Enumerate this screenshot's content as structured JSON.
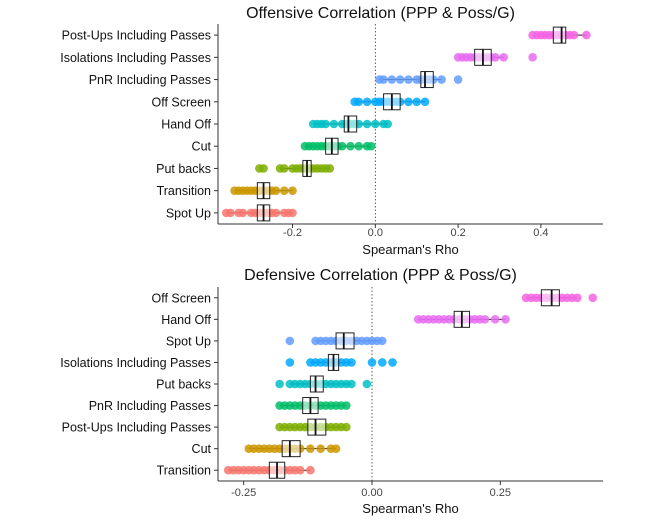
{
  "chart_data": [
    {
      "type": "boxplot_dot",
      "title": "Offensive Correlation (PPP & Poss/G)",
      "xlabel": "Spearman's Rho",
      "ylabel": "",
      "xlim": [
        -0.38,
        0.55
      ],
      "xticks": [
        -0.2,
        0.0,
        0.2,
        0.4
      ],
      "xtick_labels": [
        "-0.2",
        "0.0",
        "0.2",
        "0.4"
      ],
      "reference_line": 0.0,
      "grid": false,
      "categories": [
        "Post-Ups Including Passes",
        "Isolations Including Passes",
        "PnR Including Passes",
        "Off Screen",
        "Hand Off",
        "Cut",
        "Put backs",
        "Transition",
        "Spot Up"
      ],
      "series": [
        {
          "category": "Post-Ups Including Passes",
          "color": "#F564E3",
          "q1": 0.43,
          "median": 0.45,
          "q3": 0.46,
          "wlo": 0.38,
          "whi": 0.51,
          "points": [
            0.38,
            0.39,
            0.4,
            0.41,
            0.42,
            0.43,
            0.44,
            0.45,
            0.46,
            0.47,
            0.48,
            0.51
          ]
        },
        {
          "category": "Isolations Including Passes",
          "color": "#E76BF3",
          "q1": 0.24,
          "median": 0.26,
          "q3": 0.28,
          "wlo": 0.2,
          "whi": 0.31,
          "points": [
            0.2,
            0.21,
            0.22,
            0.23,
            0.24,
            0.25,
            0.26,
            0.27,
            0.28,
            0.29,
            0.31,
            0.38
          ]
        },
        {
          "category": "PnR Including Passes",
          "color": "#619CFF",
          "q1": 0.11,
          "median": 0.12,
          "q3": 0.14,
          "wlo": 0.01,
          "whi": 0.16,
          "points": [
            0.01,
            0.02,
            0.04,
            0.06,
            0.08,
            0.1,
            0.11,
            0.12,
            0.13,
            0.14,
            0.16,
            0.2
          ]
        },
        {
          "category": "Off Screen",
          "color": "#00A9FF",
          "q1": 0.02,
          "median": 0.04,
          "q3": 0.06,
          "wlo": -0.05,
          "whi": 0.12,
          "points": [
            -0.05,
            -0.04,
            -0.02,
            0.0,
            0.01,
            0.02,
            0.03,
            0.04,
            0.05,
            0.06,
            0.08,
            0.1,
            0.12
          ]
        },
        {
          "category": "Hand Off",
          "color": "#00BFC4",
          "q1": -0.075,
          "median": -0.065,
          "q3": -0.045,
          "wlo": -0.15,
          "whi": 0.03,
          "points": [
            -0.15,
            -0.14,
            -0.13,
            -0.12,
            -0.1,
            -0.08,
            -0.07,
            -0.06,
            -0.05,
            -0.04,
            -0.02,
            0.0,
            0.02,
            0.03
          ]
        },
        {
          "category": "Cut",
          "color": "#00BE67",
          "q1": -0.12,
          "median": -0.105,
          "q3": -0.09,
          "wlo": -0.17,
          "whi": -0.01,
          "points": [
            -0.17,
            -0.16,
            -0.15,
            -0.14,
            -0.13,
            -0.12,
            -0.11,
            -0.1,
            -0.09,
            -0.08,
            -0.06,
            -0.04,
            -0.02,
            -0.01
          ]
        },
        {
          "category": "Put backs",
          "color": "#7CAE00",
          "q1": -0.175,
          "median": -0.165,
          "q3": -0.155,
          "wlo": -0.23,
          "whi": -0.11,
          "points": [
            -0.28,
            -0.27,
            -0.23,
            -0.22,
            -0.2,
            -0.19,
            -0.18,
            -0.17,
            -0.16,
            -0.15,
            -0.14,
            -0.13,
            -0.12,
            -0.11
          ]
        },
        {
          "category": "Transition",
          "color": "#CD9600",
          "q1": -0.285,
          "median": -0.27,
          "q3": -0.255,
          "wlo": -0.34,
          "whi": -0.2,
          "points": [
            -0.34,
            -0.33,
            -0.32,
            -0.31,
            -0.3,
            -0.29,
            -0.28,
            -0.27,
            -0.26,
            -0.25,
            -0.24,
            -0.22,
            -0.2
          ]
        },
        {
          "category": "Spot Up",
          "color": "#F8766D",
          "q1": -0.285,
          "median": -0.27,
          "q3": -0.255,
          "wlo": -0.36,
          "whi": -0.2,
          "points": [
            -0.36,
            -0.35,
            -0.33,
            -0.32,
            -0.3,
            -0.29,
            -0.28,
            -0.27,
            -0.26,
            -0.25,
            -0.24,
            -0.22,
            -0.21,
            -0.2
          ]
        }
      ]
    },
    {
      "type": "boxplot_dot",
      "title": "Defensive Correlation (PPP & Poss/G)",
      "xlabel": "Spearman's Rho",
      "ylabel": "",
      "xlim": [
        -0.3,
        0.45
      ],
      "xticks": [
        -0.25,
        0.0,
        0.25
      ],
      "xtick_labels": [
        "-0.25",
        "0.00",
        "0.25"
      ],
      "reference_line": 0.0,
      "grid": false,
      "categories": [
        "Off Screen",
        "Hand Off",
        "Spot Up",
        "Isolations Including Passes",
        "Put backs",
        "PnR Including Passes",
        "Post-Ups Including Passes",
        "Cut",
        "Transition"
      ],
      "series": [
        {
          "category": "Off Screen",
          "color": "#F564E3",
          "q1": 0.33,
          "median": 0.35,
          "q3": 0.365,
          "wlo": 0.3,
          "whi": 0.4,
          "points": [
            0.3,
            0.31,
            0.32,
            0.33,
            0.34,
            0.35,
            0.36,
            0.37,
            0.38,
            0.39,
            0.4,
            0.43
          ]
        },
        {
          "category": "Hand Off",
          "color": "#E76BF3",
          "q1": 0.16,
          "median": 0.175,
          "q3": 0.19,
          "wlo": 0.09,
          "whi": 0.26,
          "points": [
            0.09,
            0.1,
            0.11,
            0.12,
            0.13,
            0.14,
            0.15,
            0.16,
            0.17,
            0.18,
            0.19,
            0.2,
            0.21,
            0.22,
            0.24,
            0.26
          ]
        },
        {
          "category": "Spot Up",
          "color": "#619CFF",
          "q1": -0.07,
          "median": -0.055,
          "q3": -0.035,
          "wlo": -0.11,
          "whi": 0.02,
          "points": [
            -0.16,
            -0.11,
            -0.1,
            -0.09,
            -0.08,
            -0.07,
            -0.06,
            -0.05,
            -0.04,
            -0.03,
            -0.02,
            -0.01,
            0.0,
            0.01,
            0.02
          ]
        },
        {
          "category": "Isolations Including Passes",
          "color": "#00A9FF",
          "q1": -0.085,
          "median": -0.075,
          "q3": -0.065,
          "wlo": -0.12,
          "whi": -0.04,
          "points": [
            -0.16,
            -0.12,
            -0.11,
            -0.1,
            -0.09,
            -0.08,
            -0.07,
            -0.06,
            -0.05,
            -0.04,
            0.0,
            0.02,
            0.04
          ]
        },
        {
          "category": "Put backs",
          "color": "#00BFC4",
          "q1": -0.12,
          "median": -0.11,
          "q3": -0.095,
          "wlo": -0.16,
          "whi": -0.04,
          "points": [
            -0.18,
            -0.16,
            -0.15,
            -0.14,
            -0.13,
            -0.12,
            -0.11,
            -0.1,
            -0.09,
            -0.08,
            -0.07,
            -0.06,
            -0.05,
            -0.04,
            -0.01
          ]
        },
        {
          "category": "PnR Including Passes",
          "color": "#00BE67",
          "q1": -0.135,
          "median": -0.12,
          "q3": -0.105,
          "wlo": -0.18,
          "whi": -0.05,
          "points": [
            -0.18,
            -0.17,
            -0.16,
            -0.15,
            -0.14,
            -0.13,
            -0.12,
            -0.11,
            -0.1,
            -0.09,
            -0.08,
            -0.07,
            -0.06,
            -0.05
          ]
        },
        {
          "category": "Post-Ups Including Passes",
          "color": "#7CAE00",
          "q1": -0.125,
          "median": -0.11,
          "q3": -0.09,
          "wlo": -0.18,
          "whi": -0.05,
          "points": [
            -0.18,
            -0.17,
            -0.16,
            -0.15,
            -0.14,
            -0.13,
            -0.12,
            -0.11,
            -0.1,
            -0.09,
            -0.08,
            -0.07,
            -0.06,
            -0.05
          ]
        },
        {
          "category": "Cut",
          "color": "#CD9600",
          "q1": -0.175,
          "median": -0.16,
          "q3": -0.14,
          "wlo": -0.24,
          "whi": -0.07,
          "points": [
            -0.24,
            -0.23,
            -0.22,
            -0.21,
            -0.2,
            -0.19,
            -0.18,
            -0.17,
            -0.16,
            -0.15,
            -0.14,
            -0.12,
            -0.1,
            -0.08,
            -0.07
          ]
        },
        {
          "category": "Transition",
          "color": "#F8766D",
          "q1": -0.2,
          "median": -0.185,
          "q3": -0.17,
          "wlo": -0.28,
          "whi": -0.12,
          "points": [
            -0.28,
            -0.27,
            -0.26,
            -0.25,
            -0.24,
            -0.23,
            -0.22,
            -0.21,
            -0.2,
            -0.19,
            -0.18,
            -0.17,
            -0.16,
            -0.15,
            -0.14,
            -0.12
          ]
        }
      ]
    }
  ]
}
